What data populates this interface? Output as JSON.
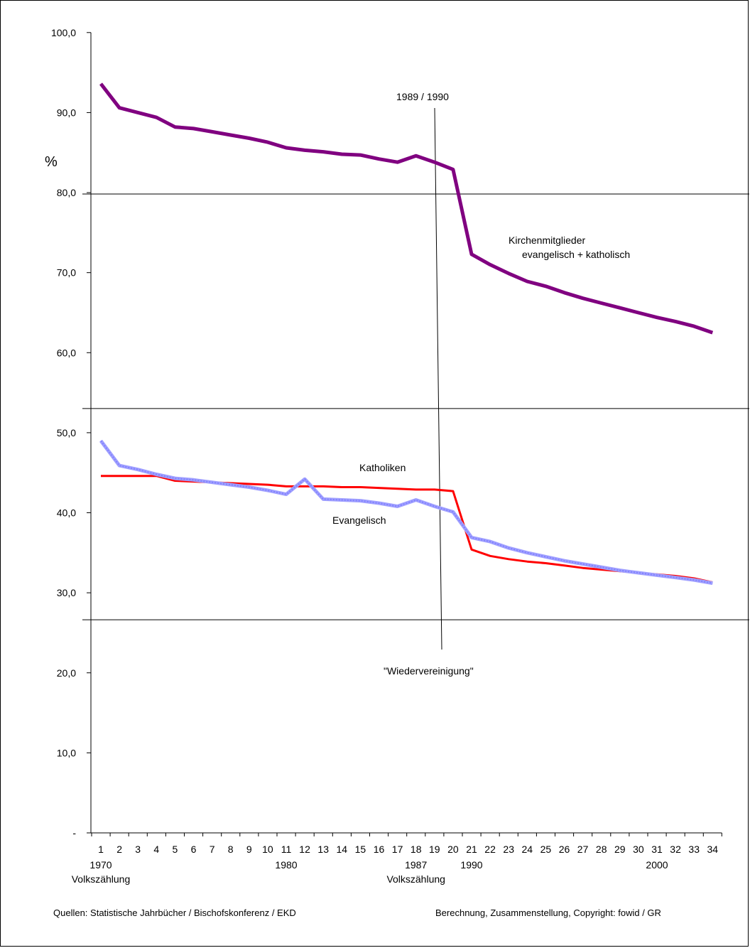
{
  "chart_data": {
    "type": "line",
    "title": "",
    "xlabel": "",
    "ylabel": "%",
    "ylim": [
      0,
      100
    ],
    "y_ticks": [
      "-",
      "10,0",
      "20,0",
      "30,0",
      "40,0",
      "50,0",
      "60,0",
      "70,0",
      "80,0",
      "90,0",
      "100,0"
    ],
    "x": [
      1,
      2,
      3,
      4,
      5,
      6,
      7,
      8,
      9,
      10,
      11,
      12,
      13,
      14,
      15,
      16,
      17,
      18,
      19,
      20,
      21,
      22,
      23,
      24,
      25,
      26,
      27,
      28,
      29,
      30,
      31,
      32,
      33,
      34
    ],
    "year_labels": [
      {
        "x": 1,
        "lines": [
          "1970",
          "Volkszählung"
        ]
      },
      {
        "x": 11,
        "lines": [
          "1980"
        ]
      },
      {
        "x": 18,
        "lines": [
          "1987",
          "Volkszählung"
        ]
      },
      {
        "x": 21,
        "lines": [
          "1990"
        ]
      },
      {
        "x": 31,
        "lines": [
          "2000"
        ]
      }
    ],
    "series": [
      {
        "name": "Kirchenmitglieder evangelisch + katholisch",
        "color": "#800080",
        "values": [
          93.6,
          90.6,
          90.0,
          89.4,
          88.2,
          88.0,
          87.6,
          87.2,
          86.8,
          86.3,
          85.6,
          85.3,
          85.1,
          84.8,
          84.7,
          84.2,
          83.8,
          84.6,
          83.8,
          82.9,
          72.3,
          71.0,
          69.9,
          68.9,
          68.3,
          67.5,
          66.8,
          66.2,
          65.6,
          65.0,
          64.4,
          63.9,
          63.3,
          62.5
        ]
      },
      {
        "name": "Katholiken",
        "color": "#ff0000",
        "values": [
          44.6,
          44.6,
          44.6,
          44.6,
          44.0,
          43.9,
          43.8,
          43.7,
          43.6,
          43.5,
          43.3,
          43.3,
          43.3,
          43.2,
          43.2,
          43.1,
          43.0,
          42.9,
          42.9,
          42.7,
          35.4,
          34.6,
          34.2,
          33.9,
          33.7,
          33.4,
          33.1,
          32.9,
          32.7,
          32.5,
          32.3,
          32.1,
          31.8,
          31.3
        ]
      },
      {
        "name": "Evangelisch",
        "color": "#8080ff",
        "values": [
          49.0,
          45.9,
          45.4,
          44.8,
          44.3,
          44.1,
          43.8,
          43.5,
          43.2,
          42.8,
          42.3,
          44.2,
          41.7,
          41.6,
          41.5,
          41.2,
          40.8,
          41.6,
          40.8,
          40.1,
          36.9,
          36.4,
          35.6,
          35.0,
          34.5,
          34.0,
          33.6,
          33.2,
          32.8,
          32.5,
          32.2,
          31.9,
          31.6,
          31.2
        ]
      }
    ],
    "annotations": {
      "event_top": "1989 / 1990",
      "event_bottom": "\"Wiedervereinigung\"",
      "series_label_1_line1": "Kirchenmitglieder",
      "series_label_1_line2": "evangelisch + katholisch",
      "series_label_2": "Katholiken",
      "series_label_3": "Evangelisch"
    },
    "grid": false
  },
  "footer": {
    "sources": "Quellen: Statistische Jahrbücher / Bischofskonferenz / EKD",
    "credit": "Berechnung, Zusammenstellung, Copyright: fowid / GR"
  }
}
